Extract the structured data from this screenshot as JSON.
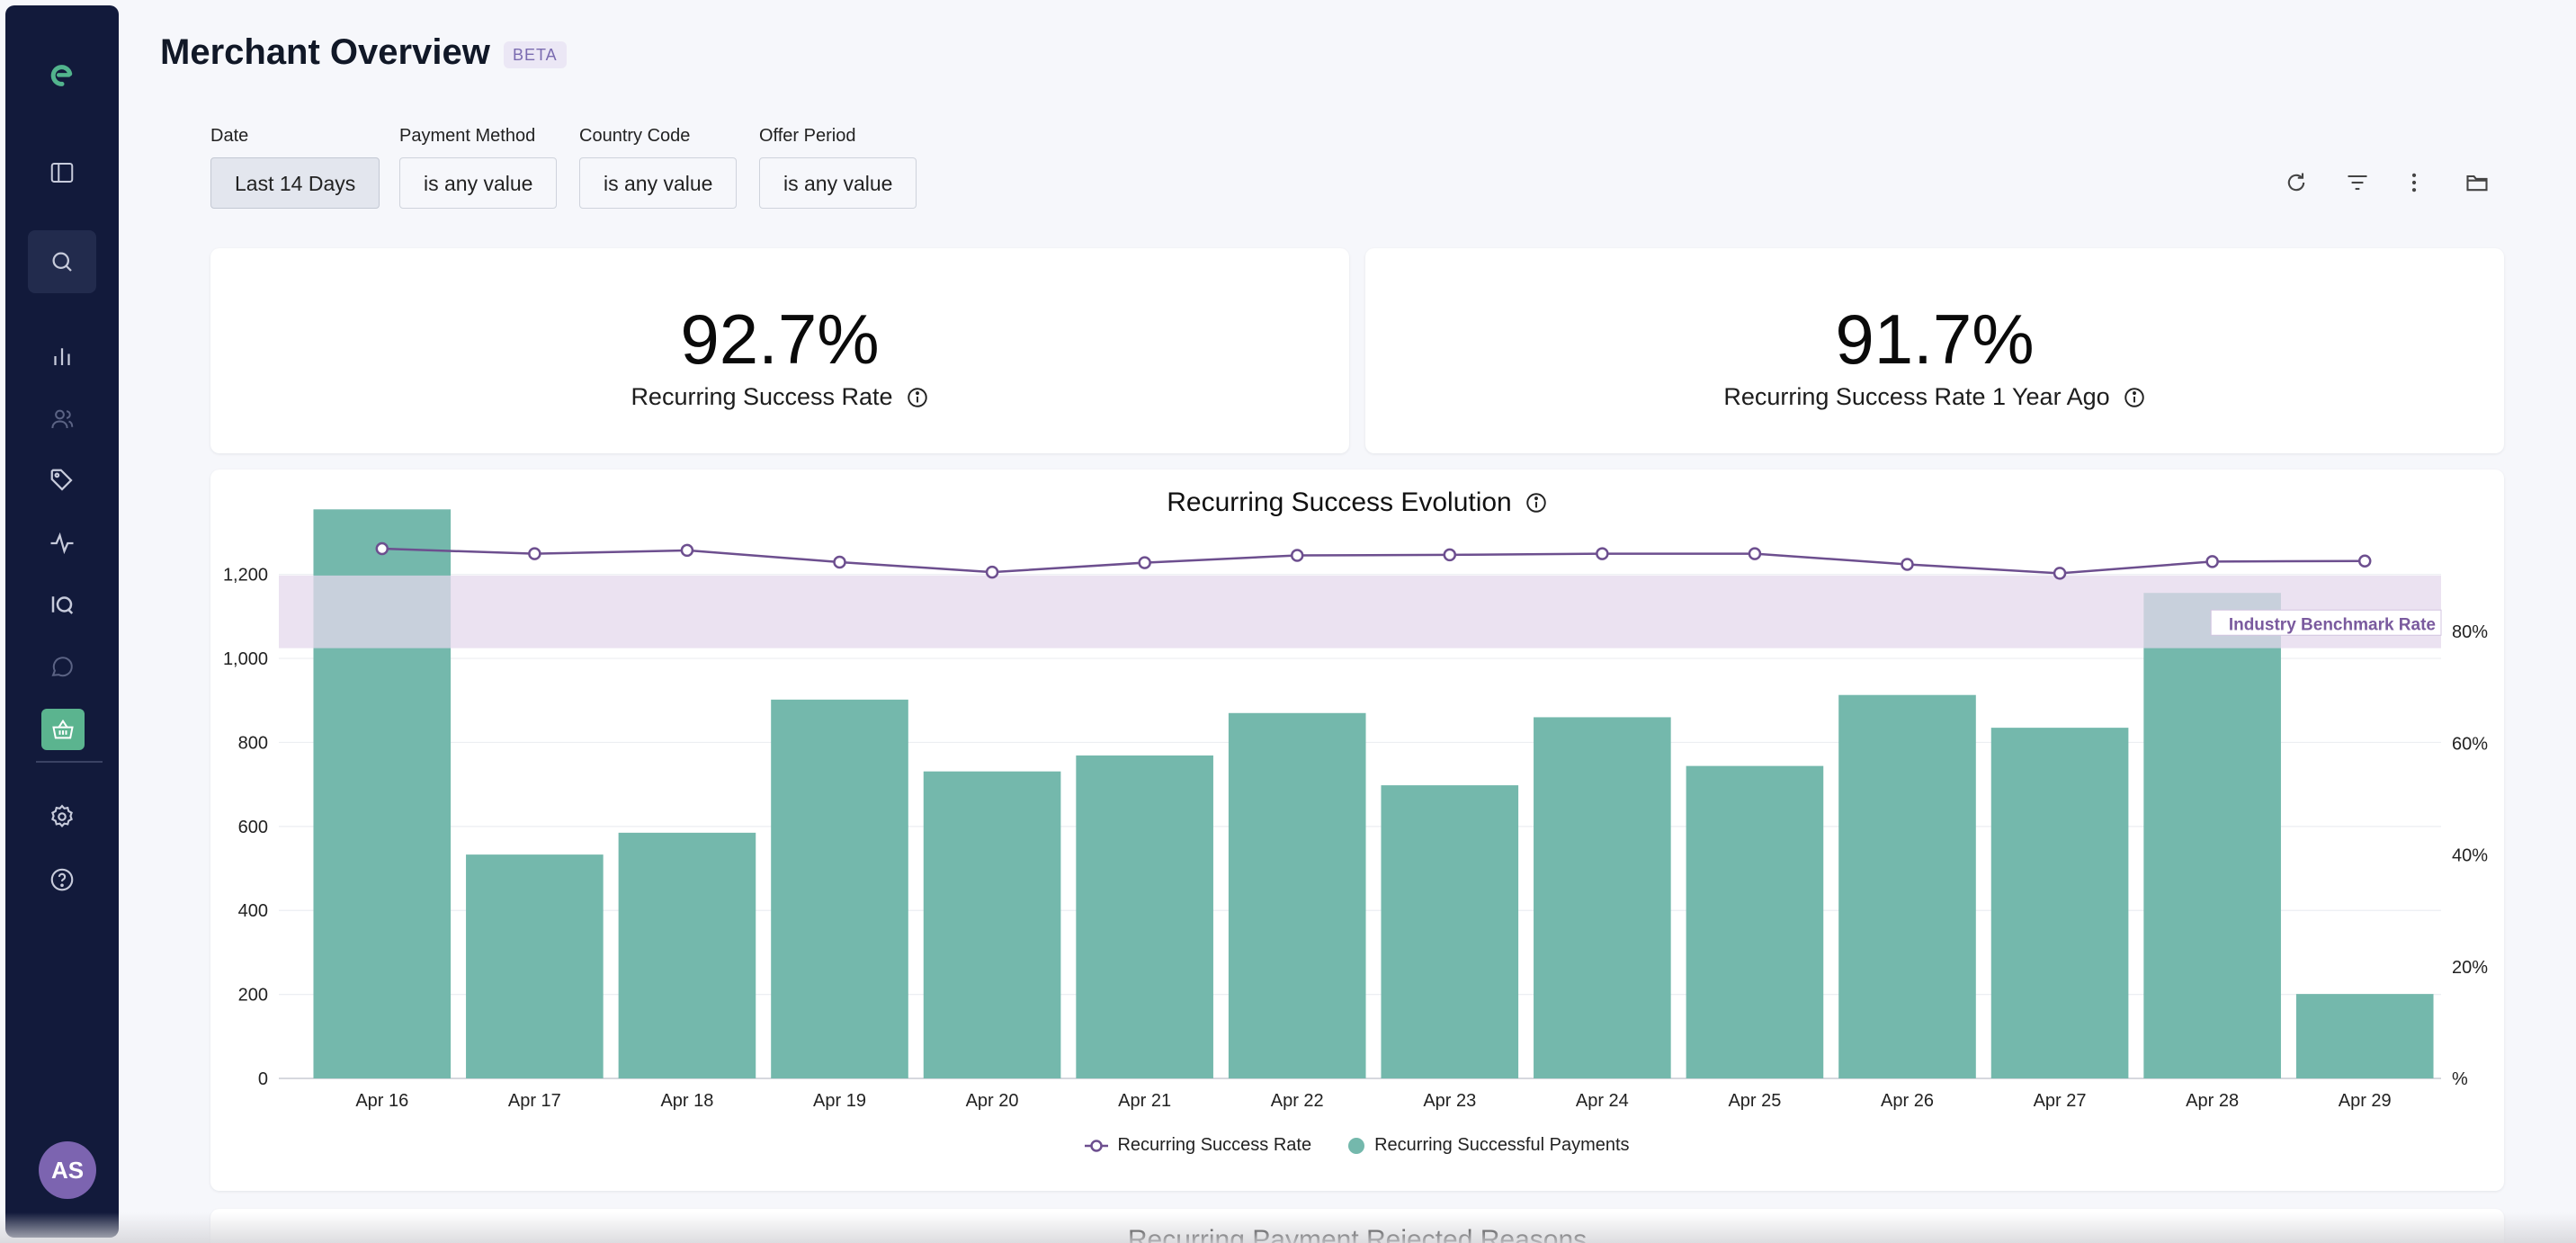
{
  "header": {
    "title": "Merchant Overview",
    "badge": "BETA"
  },
  "filters": [
    {
      "label": "Date",
      "value": "Last 14 Days"
    },
    {
      "label": "Payment Method",
      "value": "is any value"
    },
    {
      "label": "Country Code",
      "value": "is any value"
    },
    {
      "label": "Offer Period",
      "value": "is any value"
    }
  ],
  "toolbar_icons": [
    "refresh-icon",
    "filter-icon",
    "more-vertical-icon",
    "folder-icon"
  ],
  "sidebar": {
    "logo": "brand-logo-icon",
    "items": [
      "sidebar-toggle-icon",
      "search-icon",
      "bar-chart-icon",
      "users-icon",
      "tag-icon",
      "activity-icon",
      "iq-icon",
      "chat-icon",
      "basket-icon",
      "settings-icon",
      "help-icon"
    ],
    "avatar_initials": "AS",
    "avatar_color": "#7c64b0"
  },
  "kpis": [
    {
      "value": "92.7%",
      "label": "Recurring Success Rate"
    },
    {
      "value": "91.7%",
      "label": "Recurring Success Rate 1 Year Ago"
    }
  ],
  "colors": {
    "bar": "#74b8ac",
    "line": "#6d4f8f",
    "benchmark_band": "#e4d8ec",
    "sidebar_bg": "#121a3b",
    "accent_green": "#5bb48f"
  },
  "chart_data": {
    "type": "bar",
    "title": "Recurring Success Evolution",
    "categories": [
      "Apr 16",
      "Apr 17",
      "Apr 18",
      "Apr 19",
      "Apr 20",
      "Apr 21",
      "Apr 22",
      "Apr 23",
      "Apr 24",
      "Apr 25",
      "Apr 26",
      "Apr 27",
      "Apr 28",
      "Apr 29"
    ],
    "series": [
      {
        "name": "Recurring Successful Payments",
        "type": "bar",
        "axis": "left",
        "values": [
          1355,
          533,
          585,
          902,
          731,
          769,
          870,
          698,
          860,
          744,
          913,
          835,
          1156,
          201
        ]
      },
      {
        "name": "Recurring Success Rate",
        "type": "line",
        "axis": "right",
        "values": [
          94.8,
          93.9,
          94.5,
          92.4,
          90.6,
          92.3,
          93.6,
          93.7,
          93.9,
          93.9,
          92.0,
          90.4,
          92.5,
          92.6
        ]
      }
    ],
    "y_left": {
      "min": 0,
      "max": 1300,
      "ticks": [
        "0",
        "200",
        "400",
        "600",
        "800",
        "1,000",
        "1,200"
      ],
      "tick_values": [
        0,
        200,
        400,
        600,
        800,
        1000,
        1200
      ]
    },
    "y_right": {
      "min": 0,
      "max": 100,
      "ticks": [
        "%",
        "20%",
        "40%",
        "60%",
        "80%"
      ],
      "tick_values": [
        0,
        20,
        40,
        60,
        80
      ]
    },
    "benchmark": {
      "label": "Industry Benchmark Rate",
      "low": 77,
      "high": 90
    },
    "grid": true,
    "legend_position": "bottom"
  },
  "bottom_section": {
    "title": "Recurring Payment Rejected Reasons"
  }
}
